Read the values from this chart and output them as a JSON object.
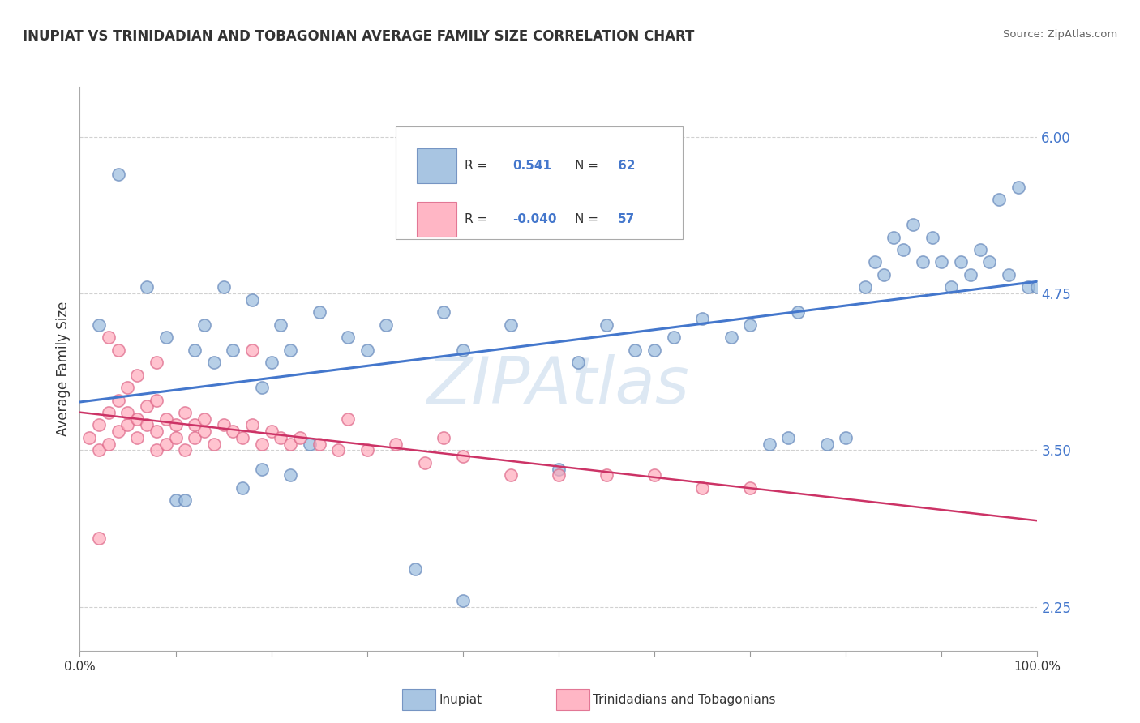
{
  "title": "INUPIAT VS TRINIDADIAN AND TOBAGONIAN AVERAGE FAMILY SIZE CORRELATION CHART",
  "source": "Source: ZipAtlas.com",
  "ylabel": "Average Family Size",
  "watermark": "ZIPAtlas",
  "xlim": [
    0.0,
    1.0
  ],
  "ylim": [
    1.9,
    6.4
  ],
  "ytick_positions": [
    2.25,
    3.5,
    4.75,
    6.0
  ],
  "ytick_labels": [
    "2.25",
    "3.50",
    "4.75",
    "6.00"
  ],
  "xtick_positions": [
    0.0,
    0.1,
    0.2,
    0.3,
    0.4,
    0.5,
    0.6,
    0.7,
    0.8,
    0.9,
    1.0
  ],
  "xticklabels_show": [
    "0.0%",
    "",
    "",
    "",
    "",
    "",
    "",
    "",
    "",
    "",
    "100.0%"
  ],
  "blue_color": "#99BBDD",
  "pink_color": "#FFAABB",
  "blue_edge": "#6688BB",
  "pink_edge": "#DD6688",
  "blue_R": 0.541,
  "blue_N": 62,
  "pink_R": -0.04,
  "pink_N": 57,
  "blue_line_color": "#4477CC",
  "pink_line_color": "#CC3366",
  "blue_x": [
    0.02,
    0.04,
    0.07,
    0.09,
    0.12,
    0.13,
    0.14,
    0.15,
    0.16,
    0.18,
    0.19,
    0.2,
    0.21,
    0.22,
    0.25,
    0.28,
    0.3,
    0.32,
    0.38,
    0.4,
    0.45,
    0.5,
    0.52,
    0.55,
    0.58,
    0.6,
    0.62,
    0.65,
    0.68,
    0.7,
    0.72,
    0.74,
    0.75,
    0.78,
    0.8,
    0.82,
    0.83,
    0.84,
    0.85,
    0.86,
    0.87,
    0.88,
    0.89,
    0.9,
    0.91,
    0.92,
    0.93,
    0.94,
    0.95,
    0.96,
    0.97,
    0.98,
    0.99,
    1.0,
    0.1,
    0.11,
    0.17,
    0.19,
    0.22,
    0.24,
    0.35,
    0.4
  ],
  "blue_y": [
    4.5,
    5.7,
    4.8,
    4.4,
    4.3,
    4.5,
    4.2,
    4.8,
    4.3,
    4.7,
    4.0,
    4.2,
    4.5,
    4.3,
    4.6,
    4.4,
    4.3,
    4.5,
    4.6,
    4.3,
    4.5,
    3.35,
    4.2,
    4.5,
    4.3,
    4.3,
    4.4,
    4.55,
    4.4,
    4.5,
    3.55,
    3.6,
    4.6,
    3.55,
    3.6,
    4.8,
    5.0,
    4.9,
    5.2,
    5.1,
    5.3,
    5.0,
    5.2,
    5.0,
    4.8,
    5.0,
    4.9,
    5.1,
    5.0,
    5.5,
    4.9,
    5.6,
    4.8,
    4.8,
    3.1,
    3.1,
    3.2,
    3.35,
    3.3,
    3.55,
    2.55,
    2.3
  ],
  "pink_x": [
    0.01,
    0.02,
    0.02,
    0.03,
    0.03,
    0.04,
    0.04,
    0.05,
    0.05,
    0.05,
    0.06,
    0.06,
    0.07,
    0.07,
    0.08,
    0.08,
    0.08,
    0.09,
    0.09,
    0.1,
    0.1,
    0.11,
    0.11,
    0.12,
    0.12,
    0.13,
    0.13,
    0.14,
    0.15,
    0.16,
    0.17,
    0.18,
    0.19,
    0.2,
    0.21,
    0.22,
    0.23,
    0.25,
    0.27,
    0.3,
    0.33,
    0.36,
    0.4,
    0.45,
    0.5,
    0.55,
    0.6,
    0.65,
    0.7,
    0.38,
    0.28,
    0.18,
    0.08,
    0.06,
    0.04,
    0.03,
    0.02
  ],
  "pink_y": [
    3.6,
    3.7,
    3.5,
    3.8,
    3.55,
    3.9,
    3.65,
    3.7,
    3.8,
    4.0,
    3.6,
    3.75,
    3.7,
    3.85,
    3.65,
    3.9,
    3.5,
    3.75,
    3.55,
    3.7,
    3.6,
    3.8,
    3.5,
    3.7,
    3.6,
    3.65,
    3.75,
    3.55,
    3.7,
    3.65,
    3.6,
    3.7,
    3.55,
    3.65,
    3.6,
    3.55,
    3.6,
    3.55,
    3.5,
    3.5,
    3.55,
    3.4,
    3.45,
    3.3,
    3.3,
    3.3,
    3.3,
    3.2,
    3.2,
    3.6,
    3.75,
    4.3,
    4.2,
    4.1,
    4.3,
    4.4,
    2.8
  ]
}
